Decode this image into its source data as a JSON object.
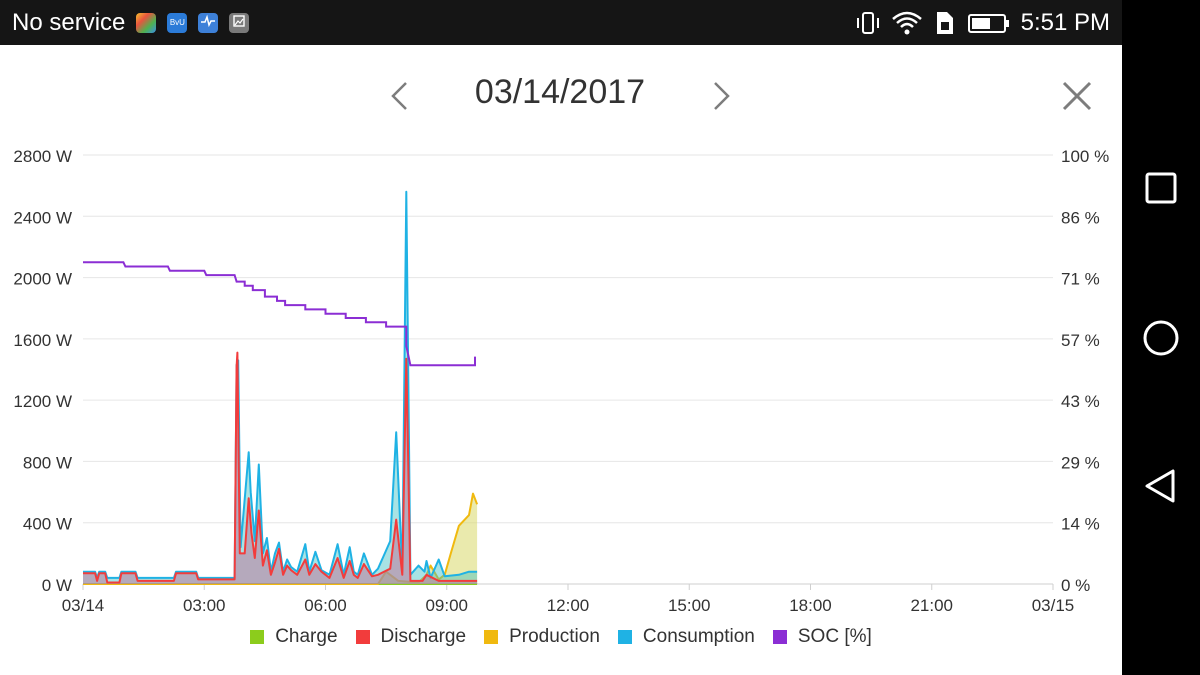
{
  "status_bar": {
    "carrier": "No service",
    "time": "5:51 PM",
    "app_icons": [
      "color-app-icon",
      "bv-app-icon",
      "heartbeat-app-icon",
      "gallery-app-icon"
    ],
    "system_icons": [
      "vibrate-icon",
      "wifi-icon",
      "sim-icon",
      "battery-icon"
    ],
    "battery_level": 0.6
  },
  "header": {
    "date": "03/14/2017",
    "prev_icon": "chevron-left-icon",
    "next_icon": "chevron-right-icon",
    "close_icon": "close-icon"
  },
  "nav_bar": {
    "icons": [
      "recents-icon",
      "home-icon",
      "back-icon"
    ]
  },
  "colors": {
    "Charge": "#8ccc1c",
    "Discharge": "#f23c3c",
    "Production": "#f0b90f",
    "Consumption": "#1fb2e4",
    "SOC": "#8b2ed4",
    "grid": "#e6e6e6"
  },
  "chart_data": {
    "type": "area",
    "x_range": [
      "03/14 00:00",
      "03/15 00:00"
    ],
    "x_ticks": [
      "03/14",
      "03:00",
      "06:00",
      "09:00",
      "12:00",
      "15:00",
      "18:00",
      "21:00",
      "03/15"
    ],
    "y_left": {
      "unit": "W",
      "range": [
        0,
        2800
      ],
      "ticks": [
        "0 W",
        "400 W",
        "800 W",
        "1200 W",
        "1600 W",
        "2000 W",
        "2400 W",
        "2800 W"
      ]
    },
    "y_right": {
      "unit": "%",
      "range": [
        0,
        100
      ],
      "ticks": [
        "0 %",
        "14 %",
        "29 %",
        "43 %",
        "57 %",
        "71 %",
        "86 %",
        "100 %"
      ]
    },
    "grid": true,
    "legend_position": "bottom",
    "series": [
      {
        "name": "Charge",
        "axis": "left",
        "points": [
          [
            0,
            0
          ],
          [
            9.75,
            0
          ]
        ]
      },
      {
        "name": "Discharge",
        "axis": "left",
        "points": [
          [
            0,
            70
          ],
          [
            0.3,
            70
          ],
          [
            0.35,
            20
          ],
          [
            0.4,
            70
          ],
          [
            0.55,
            70
          ],
          [
            0.6,
            10
          ],
          [
            0.9,
            10
          ],
          [
            0.95,
            70
          ],
          [
            1.3,
            70
          ],
          [
            1.35,
            20
          ],
          [
            2.25,
            20
          ],
          [
            2.3,
            70
          ],
          [
            2.8,
            70
          ],
          [
            2.85,
            30
          ],
          [
            3.75,
            30
          ],
          [
            3.8,
            1420
          ],
          [
            3.82,
            1510
          ],
          [
            3.88,
            200
          ],
          [
            4,
            200
          ],
          [
            4.1,
            560
          ],
          [
            4.17,
            330
          ],
          [
            4.25,
            170
          ],
          [
            4.35,
            480
          ],
          [
            4.45,
            120
          ],
          [
            4.55,
            220
          ],
          [
            4.65,
            60
          ],
          [
            4.75,
            140
          ],
          [
            4.85,
            230
          ],
          [
            4.95,
            60
          ],
          [
            5.05,
            120
          ],
          [
            5.15,
            90
          ],
          [
            5.3,
            60
          ],
          [
            5.5,
            160
          ],
          [
            5.6,
            60
          ],
          [
            5.75,
            130
          ],
          [
            5.9,
            80
          ],
          [
            6.1,
            40
          ],
          [
            6.3,
            170
          ],
          [
            6.45,
            40
          ],
          [
            6.6,
            150
          ],
          [
            6.7,
            60
          ],
          [
            6.8,
            40
          ],
          [
            6.95,
            130
          ],
          [
            7.15,
            50
          ],
          [
            7.3,
            60
          ],
          [
            7.6,
            100
          ],
          [
            7.75,
            420
          ],
          [
            7.9,
            60
          ],
          [
            8,
            1470
          ],
          [
            8.1,
            20
          ],
          [
            8.4,
            20
          ],
          [
            8.5,
            60
          ],
          [
            8.8,
            20
          ],
          [
            9.3,
            20
          ],
          [
            9.75,
            20
          ]
        ]
      },
      {
        "name": "Production",
        "axis": "left",
        "points": [
          [
            0,
            0
          ],
          [
            7.3,
            0
          ],
          [
            7.5,
            80
          ],
          [
            7.8,
            20
          ],
          [
            8.3,
            10
          ],
          [
            8.5,
            60
          ],
          [
            8.6,
            120
          ],
          [
            8.8,
            30
          ],
          [
            8.95,
            60
          ],
          [
            9.1,
            200
          ],
          [
            9.3,
            380
          ],
          [
            9.55,
            450
          ],
          [
            9.65,
            590
          ],
          [
            9.75,
            520
          ]
        ]
      },
      {
        "name": "Consumption",
        "axis": "left",
        "points": [
          [
            0,
            80
          ],
          [
            0.3,
            80
          ],
          [
            0.35,
            40
          ],
          [
            0.4,
            80
          ],
          [
            0.55,
            80
          ],
          [
            0.6,
            40
          ],
          [
            0.9,
            40
          ],
          [
            0.95,
            80
          ],
          [
            1.3,
            80
          ],
          [
            1.35,
            40
          ],
          [
            2.25,
            40
          ],
          [
            2.3,
            80
          ],
          [
            2.8,
            80
          ],
          [
            2.85,
            40
          ],
          [
            3.75,
            40
          ],
          [
            3.8,
            1430
          ],
          [
            3.84,
            1460
          ],
          [
            3.9,
            240
          ],
          [
            4.1,
            860
          ],
          [
            4.15,
            600
          ],
          [
            4.25,
            280
          ],
          [
            4.35,
            780
          ],
          [
            4.45,
            200
          ],
          [
            4.55,
            300
          ],
          [
            4.65,
            80
          ],
          [
            4.75,
            200
          ],
          [
            4.85,
            270
          ],
          [
            4.95,
            80
          ],
          [
            5.05,
            160
          ],
          [
            5.15,
            110
          ],
          [
            5.3,
            80
          ],
          [
            5.5,
            260
          ],
          [
            5.6,
            80
          ],
          [
            5.75,
            210
          ],
          [
            5.9,
            90
          ],
          [
            6.1,
            60
          ],
          [
            6.3,
            260
          ],
          [
            6.45,
            60
          ],
          [
            6.6,
            240
          ],
          [
            6.7,
            80
          ],
          [
            6.8,
            60
          ],
          [
            6.95,
            200
          ],
          [
            7.15,
            60
          ],
          [
            7.3,
            100
          ],
          [
            7.6,
            280
          ],
          [
            7.75,
            990
          ],
          [
            7.9,
            80
          ],
          [
            8,
            2560
          ],
          [
            8.1,
            60
          ],
          [
            8.3,
            120
          ],
          [
            8.45,
            80
          ],
          [
            8.5,
            150
          ],
          [
            8.6,
            40
          ],
          [
            8.8,
            160
          ],
          [
            8.95,
            50
          ],
          [
            9.3,
            60
          ],
          [
            9.55,
            80
          ],
          [
            9.75,
            80
          ]
        ]
      },
      {
        "name": "SOC [%]",
        "axis": "right",
        "points": [
          [
            0,
            75
          ],
          [
            1,
            75
          ],
          [
            1.05,
            74
          ],
          [
            2.1,
            74
          ],
          [
            2.15,
            73
          ],
          [
            3,
            73
          ],
          [
            3.05,
            72
          ],
          [
            3.75,
            72
          ],
          [
            3.8,
            70.5
          ],
          [
            4,
            69.5
          ],
          [
            4.2,
            68.5
          ],
          [
            4.5,
            67
          ],
          [
            4.8,
            66
          ],
          [
            5,
            65
          ],
          [
            5.5,
            64
          ],
          [
            6,
            63
          ],
          [
            6.5,
            62
          ],
          [
            7,
            61
          ],
          [
            7.5,
            60
          ],
          [
            8,
            55.5
          ],
          [
            8.1,
            51
          ],
          [
            9.5,
            51
          ],
          [
            9.7,
            53
          ]
        ]
      }
    ]
  }
}
